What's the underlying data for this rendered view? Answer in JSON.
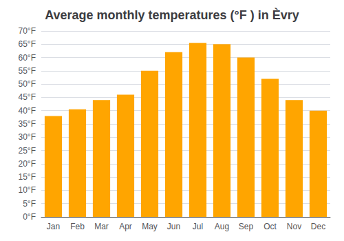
{
  "chart_data": {
    "type": "bar",
    "title": "Average monthly temperatures (°F ) in Èvry",
    "categories": [
      "Jan",
      "Feb",
      "Mar",
      "Apr",
      "May",
      "Jun",
      "Jul",
      "Aug",
      "Sep",
      "Oct",
      "Nov",
      "Dec"
    ],
    "values": [
      38,
      40.5,
      44,
      46,
      55,
      62,
      65.5,
      65,
      60,
      52,
      44,
      40
    ],
    "color": "#FFA500",
    "ylim": [
      0,
      70
    ],
    "yticks": [
      {
        "value": 0,
        "label": "0°F"
      },
      {
        "value": 5,
        "label": "5°F"
      },
      {
        "value": 10,
        "label": "10°F"
      },
      {
        "value": 15,
        "label": "15°F"
      },
      {
        "value": 20,
        "label": "20°F"
      },
      {
        "value": 25,
        "label": "25°F"
      },
      {
        "value": 30,
        "label": "30°F"
      },
      {
        "value": 35,
        "label": "35°F"
      },
      {
        "value": 40,
        "label": "40°F"
      },
      {
        "value": 45,
        "label": "45°F"
      },
      {
        "value": 50,
        "label": "50°F"
      },
      {
        "value": 55,
        "label": "55°F"
      },
      {
        "value": 60,
        "label": "60°F"
      },
      {
        "value": 65,
        "label": "65°F"
      },
      {
        "value": 70,
        "label": "70°F"
      }
    ],
    "grid": true
  }
}
